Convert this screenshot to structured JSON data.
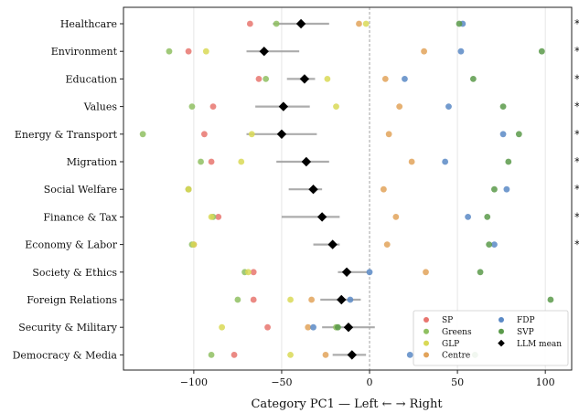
{
  "chart_data": {
    "type": "scatter",
    "xlabel": "Category PC1 — Left ← → Right",
    "xlim": [
      -140,
      115
    ],
    "xticks": [
      -100,
      -50,
      0,
      50,
      100
    ],
    "xtick_labels": [
      "−100",
      "−50",
      "0",
      "50",
      "100"
    ],
    "grid": "vertical",
    "legend_position": "bottom-right",
    "categories": [
      "Healthcare",
      "Environment",
      "Education",
      "Values",
      "Energy & Transport",
      "Migration",
      "Social Welfare",
      "Finance & Tax",
      "Economy & Labor",
      "Society & Ethics",
      "Foreign Relations",
      "Security & Military",
      "Democracy & Media"
    ],
    "significance": [
      "*",
      "*",
      "*",
      "*",
      "*",
      "*",
      "*",
      "*",
      "*",
      "",
      "",
      "",
      ""
    ],
    "series": [
      {
        "name": "SP",
        "color": "#e8756f",
        "values": [
          -68,
          -103,
          -63,
          -89,
          -94,
          -90,
          -103,
          -86,
          -100,
          -66,
          -66,
          -58,
          -77
        ]
      },
      {
        "name": "Greens",
        "color": "#8fc061",
        "values": [
          -53,
          -114,
          -59,
          -101,
          -129,
          -96,
          -103,
          -89,
          -101,
          -71,
          -75,
          -19,
          -90
        ]
      },
      {
        "name": "GLP",
        "color": "#d9d956",
        "values": [
          -2,
          -93,
          -24,
          -19,
          -67,
          -73,
          -103,
          -90,
          -100,
          -69,
          -45,
          -84,
          -45
        ]
      },
      {
        "name": "Centre",
        "color": "#e2a35a",
        "values": [
          -6,
          31,
          9,
          17,
          11,
          24,
          8,
          15,
          10,
          32,
          -33,
          -35,
          -25
        ]
      },
      {
        "name": "FDP",
        "color": "#5b8ac6",
        "values": [
          53,
          52,
          20,
          45,
          76,
          43,
          78,
          56,
          71,
          0,
          -11,
          -32,
          23
        ]
      },
      {
        "name": "SVP",
        "color": "#5a9a4a",
        "values": [
          51,
          98,
          59,
          76,
          85,
          79,
          71,
          67,
          68,
          63,
          103,
          -18,
          60
        ]
      }
    ],
    "llm_mean": {
      "name": "LLM mean",
      "values": [
        -39,
        -60,
        -37,
        -49,
        -50,
        -36,
        -32,
        -27,
        -21,
        -13,
        -16,
        -12,
        -10
      ],
      "ci_low": [
        -55,
        -70,
        -47,
        -65,
        -70,
        -53,
        -46,
        -50,
        -32,
        -18,
        -28,
        -27,
        -21
      ],
      "ci_high": [
        -23,
        -40,
        -31,
        -34,
        -30,
        -23,
        -27,
        -17,
        -17,
        -1,
        -5,
        3,
        -2
      ]
    }
  },
  "legend": {
    "items": [
      {
        "label": "SP",
        "color": "#e8756f",
        "marker": "circle"
      },
      {
        "label": "Greens",
        "color": "#8fc061",
        "marker": "circle"
      },
      {
        "label": "GLP",
        "color": "#d9d956",
        "marker": "circle"
      },
      {
        "label": "Centre",
        "color": "#e2a35a",
        "marker": "circle"
      },
      {
        "label": "FDP",
        "color": "#5b8ac6",
        "marker": "circle"
      },
      {
        "label": "SVP",
        "color": "#5a9a4a",
        "marker": "circle"
      },
      {
        "label": "LLM mean",
        "color": "#000000",
        "marker": "diamond"
      }
    ]
  }
}
